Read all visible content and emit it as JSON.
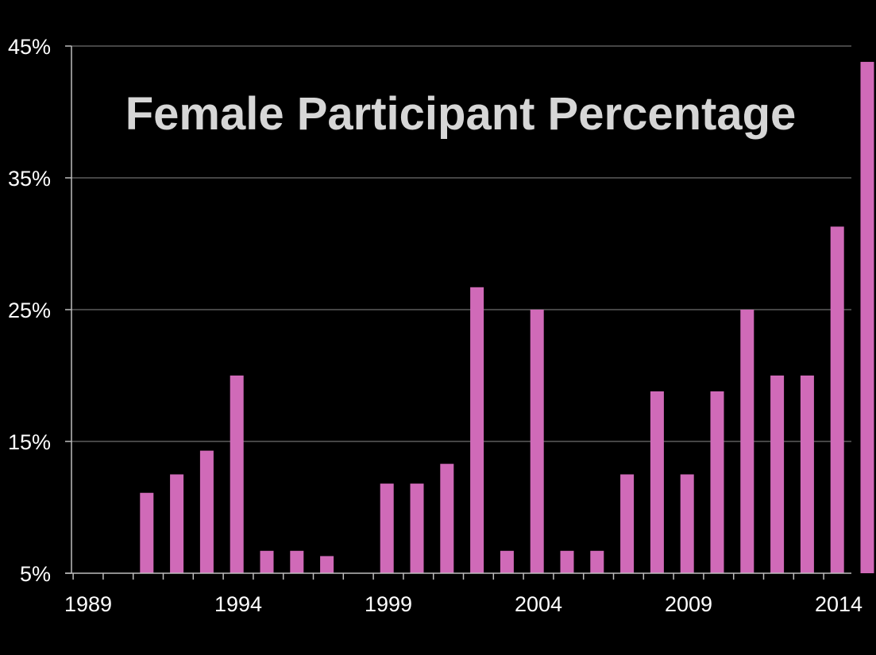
{
  "chart_data": {
    "type": "bar",
    "title": "Female Participant Percentage",
    "xlabel": "",
    "ylabel": "",
    "ylim": [
      5,
      45
    ],
    "y_ticks": [
      5,
      15,
      25,
      35,
      45
    ],
    "y_tick_labels": [
      "5%",
      "15%",
      "25%",
      "35%",
      "45%"
    ],
    "x_range": [
      1989,
      2014
    ],
    "x_ticks": [
      1989,
      1994,
      1999,
      2004,
      2009,
      2014
    ],
    "x_tick_labels": [
      "1989",
      "1994",
      "1999",
      "2004",
      "2009",
      "2014"
    ],
    "grid": true,
    "legend": "none",
    "bar_color": "#d06ab8",
    "background": "#000000",
    "categories": [
      "1990",
      "1991",
      "1992",
      "1993",
      "1994",
      "1995",
      "1996",
      "1998",
      "1999",
      "2000",
      "2001",
      "2002",
      "2003",
      "2004",
      "2005",
      "2006",
      "2007",
      "2008",
      "2009",
      "2010",
      "2011",
      "2012",
      "2013",
      "2014"
    ],
    "values": [
      11.1,
      12.5,
      14.3,
      20.0,
      6.7,
      6.7,
      6.3,
      11.8,
      11.8,
      13.3,
      26.7,
      6.7,
      25.0,
      6.7,
      6.7,
      12.5,
      18.8,
      12.5,
      18.8,
      25.0,
      20.0,
      20.0,
      31.3,
      43.8
    ]
  }
}
